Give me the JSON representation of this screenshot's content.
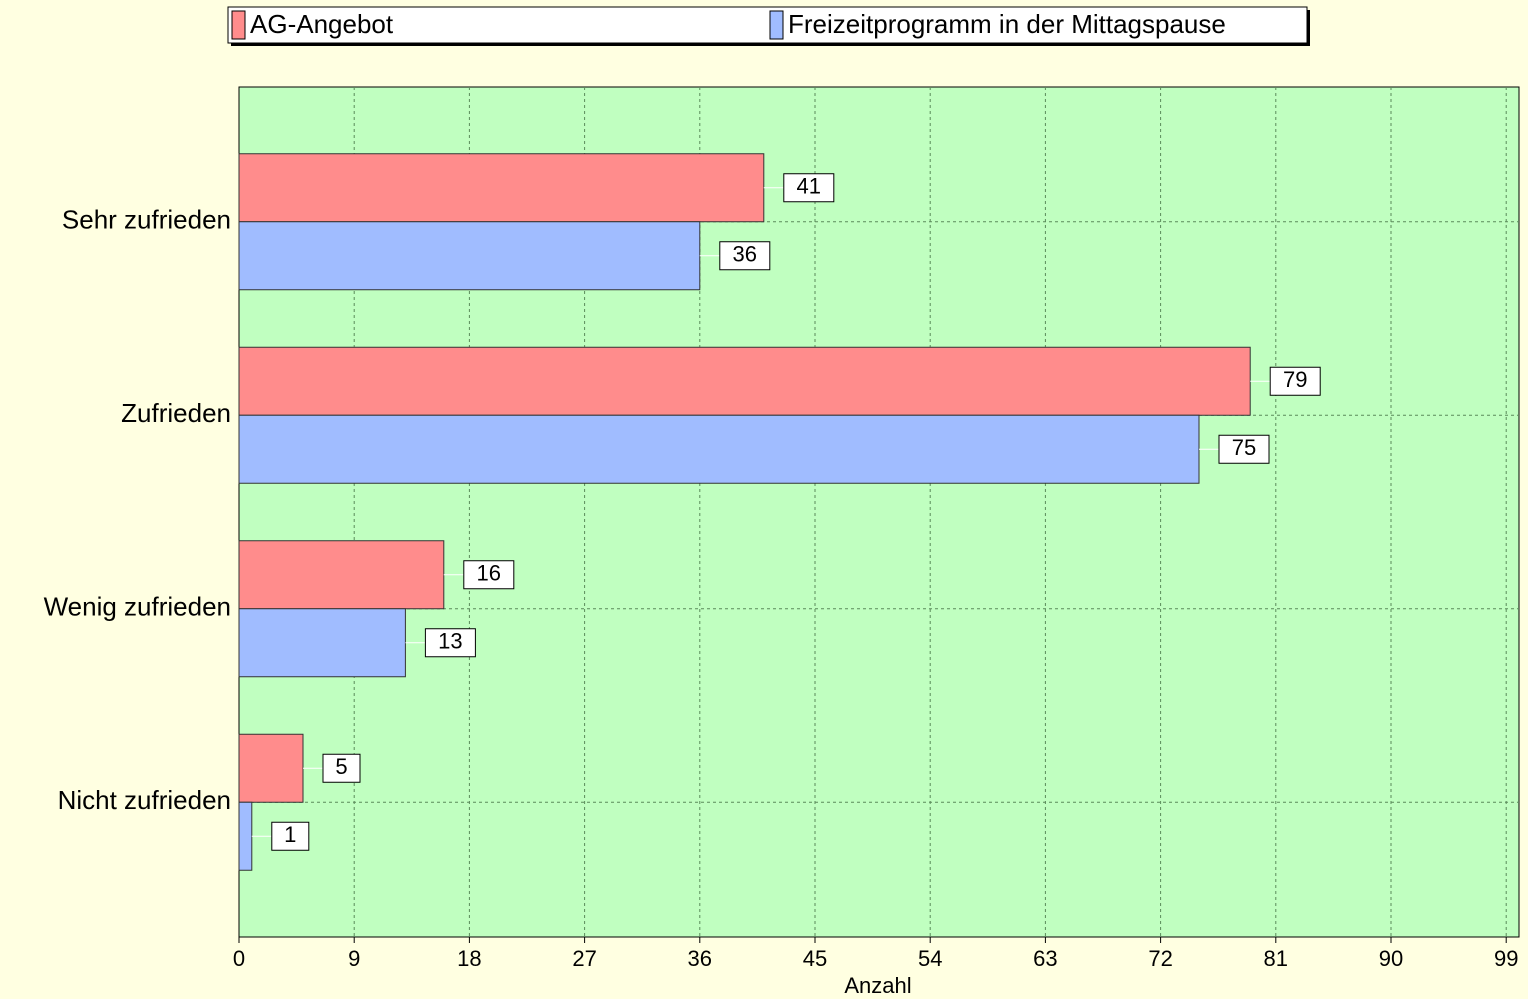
{
  "chart_data": {
    "type": "bar",
    "orientation": "horizontal",
    "categories": [
      "Sehr zufrieden",
      "Zufrieden",
      "Wenig zufrieden",
      "Nicht zufrieden"
    ],
    "series": [
      {
        "name": "AG-Angebot",
        "color": "#ff8c8c",
        "values": [
          41,
          79,
          16,
          5
        ]
      },
      {
        "name": "Freizeitprogramm in der Mittagspause",
        "color": "#a0bcff",
        "values": [
          36,
          75,
          13,
          1
        ]
      }
    ],
    "xlabel": "Anzahl",
    "xlim": [
      0,
      100
    ],
    "xticks": [
      0,
      9,
      18,
      27,
      36,
      45,
      54,
      63,
      72,
      81,
      90,
      99
    ],
    "grid": true,
    "legend": "top"
  }
}
